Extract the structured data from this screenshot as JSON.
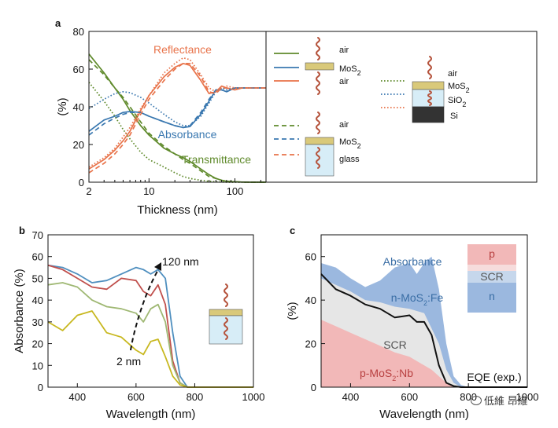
{
  "chart_data": [
    {
      "type": "line",
      "panel_label": "a",
      "xlabel": "Thickness (nm)",
      "ylabel": "(%)",
      "xscale": "log",
      "xlim": [
        2,
        230
      ],
      "ylim": [
        0,
        80
      ],
      "xticks": [
        2,
        10,
        100
      ],
      "xtick_labels": [
        "2",
        "10",
        "100"
      ],
      "yticks": [
        0,
        20,
        40,
        60,
        80
      ],
      "ytick_labels": [
        "0",
        "20",
        "40",
        "60",
        "80"
      ],
      "annotations": [
        {
          "text": "Reflectance",
          "color": "#e8734a"
        },
        {
          "text": "Absorbance",
          "color": "#3a78b0"
        },
        {
          "text": "Transmittance",
          "color": "#5f8a2b"
        }
      ],
      "x": [
        2,
        3,
        4,
        5,
        6,
        8,
        10,
        15,
        20,
        25,
        30,
        40,
        50,
        60,
        70,
        80,
        100,
        120,
        150,
        230
      ],
      "series": [
        {
          "name": "T air/MoS2/air",
          "color": "#5f8a2b",
          "style": "solid",
          "values": [
            68,
            58,
            50,
            44,
            38,
            30,
            25,
            18,
            15,
            13,
            11,
            7,
            4,
            2,
            1,
            0.5,
            0.2,
            0.1,
            0,
            0
          ]
        },
        {
          "name": "A air/MoS2/air",
          "color": "#3a78b0",
          "style": "solid",
          "values": [
            27,
            33,
            35,
            37,
            37.5,
            37,
            35,
            32,
            30,
            29,
            29.5,
            36,
            43,
            49,
            49,
            48,
            50,
            50,
            50,
            50
          ]
        },
        {
          "name": "R air/MoS2/air",
          "color": "#e8734a",
          "style": "solid",
          "values": [
            7,
            12,
            17,
            22,
            27,
            38,
            46,
            56,
            61,
            63,
            62,
            54,
            47,
            48,
            51,
            50,
            49,
            50,
            50,
            50
          ]
        },
        {
          "name": "T glass",
          "color": "#5f8a2b",
          "style": "dashed",
          "values": [
            65,
            57,
            50,
            45,
            40,
            32,
            26,
            19,
            15,
            12,
            10,
            6,
            3,
            2,
            1,
            0.5,
            0.2,
            0.1,
            0,
            0
          ]
        },
        {
          "name": "A glass",
          "color": "#3a78b0",
          "style": "dashed",
          "values": [
            25,
            31,
            34,
            36,
            37,
            37,
            35,
            32,
            30,
            29,
            30,
            37,
            44,
            49,
            49,
            48,
            50,
            50,
            50,
            50
          ]
        },
        {
          "name": "R glass",
          "color": "#e8734a",
          "style": "dashed",
          "values": [
            5,
            10,
            15,
            20,
            25,
            36,
            44,
            54,
            60,
            63,
            63,
            56,
            48,
            47,
            50,
            50,
            49,
            50,
            50,
            50
          ]
        },
        {
          "name": "T SiO2/Si",
          "color": "#5f8a2b",
          "style": "dotted",
          "values": [
            53,
            43,
            35,
            28,
            23,
            16,
            12,
            8,
            5,
            3,
            2,
            1,
            0.5,
            0.2,
            0.1,
            0,
            0,
            0,
            0,
            0
          ]
        },
        {
          "name": "A SiO2/Si",
          "color": "#3a78b0",
          "style": "dotted",
          "values": [
            39,
            44,
            47,
            48,
            47.5,
            45,
            42,
            36,
            32,
            30,
            30,
            35,
            42,
            48,
            50,
            49,
            50,
            50,
            50,
            50
          ]
        },
        {
          "name": "R SiO2/Si",
          "color": "#e8734a",
          "style": "dotted",
          "values": [
            8,
            13,
            18,
            24,
            29,
            39,
            46,
            58,
            63,
            66,
            65,
            57,
            50,
            48,
            50,
            51,
            50,
            50,
            50,
            50
          ]
        }
      ],
      "legend": {
        "groups": [
          {
            "styles": [
              "solid"
            ],
            "layers": [
              "air",
              "MoS2",
              "air"
            ]
          },
          {
            "styles": [
              "dashed"
            ],
            "layers": [
              "air",
              "MoS2",
              "glass"
            ]
          },
          {
            "styles": [
              "dotted"
            ],
            "layers": [
              "air",
              "MoS2",
              "SiO2",
              "Si"
            ]
          }
        ],
        "layer_labels": {
          "air": "air",
          "MoS": "MoS",
          "sub2": "2",
          "glass": "glass",
          "SiO": "SiO",
          "Si": "Si"
        }
      }
    },
    {
      "type": "line",
      "panel_label": "b",
      "xlabel": "Wavelength (nm)",
      "ylabel": "Absorbance (%)",
      "xlim": [
        300,
        1000
      ],
      "ylim": [
        0,
        70
      ],
      "xticks": [
        400,
        600,
        800,
        1000
      ],
      "xtick_labels": [
        "400",
        "600",
        "800",
        "1000"
      ],
      "yticks": [
        0,
        10,
        20,
        30,
        40,
        50,
        60,
        70
      ],
      "ytick_labels": [
        "0",
        "10",
        "20",
        "30",
        "40",
        "50",
        "60",
        "70"
      ],
      "annotations": [
        {
          "text": "120 nm"
        },
        {
          "text": "2 nm"
        }
      ],
      "x": [
        300,
        350,
        400,
        450,
        500,
        550,
        600,
        625,
        650,
        675,
        700,
        725,
        750,
        775,
        800,
        1000
      ],
      "series": [
        {
          "name": "120 nm",
          "color": "#4f8fbf",
          "values": [
            56,
            55,
            52,
            48,
            49,
            52,
            55,
            54,
            52,
            54,
            50,
            25,
            5,
            0,
            0,
            0
          ]
        },
        {
          "name": "thick",
          "color": "#c0504d",
          "values": [
            56,
            54,
            50,
            46,
            45,
            50,
            49,
            44,
            42,
            47,
            38,
            12,
            2,
            0,
            0,
            0
          ]
        },
        {
          "name": "mid",
          "color": "#9fb873",
          "values": [
            47,
            48,
            46,
            40,
            37,
            36,
            34,
            30,
            36,
            38,
            30,
            10,
            2,
            0,
            0,
            0
          ]
        },
        {
          "name": "2 nm",
          "color": "#c8b820",
          "values": [
            30,
            26,
            33,
            35,
            25,
            23,
            17,
            15,
            21,
            22,
            14,
            5,
            1,
            0,
            0,
            0
          ]
        }
      ]
    },
    {
      "type": "area",
      "panel_label": "c",
      "xlabel": "Wavelength (nm)",
      "ylabel": "(%)",
      "xlim": [
        300,
        1000
      ],
      "ylim": [
        0,
        70
      ],
      "xticks": [
        400,
        600,
        800,
        1000
      ],
      "xtick_labels": [
        "400",
        "600",
        "800",
        "1000"
      ],
      "yticks": [
        0,
        20,
        40,
        60
      ],
      "ytick_labels": [
        "0",
        "20",
        "40",
        "60"
      ],
      "annotations": [
        {
          "text": "Absorbance",
          "color": "#3a6ea5"
        },
        {
          "text": "n-MoS",
          "sub": "2",
          "suffix": ":Fe",
          "color": "#3a6ea5"
        },
        {
          "text": "SCR",
          "color": "#555555"
        },
        {
          "text": "p-MoS",
          "sub": "2",
          "suffix": ":Nb",
          "color": "#b84040"
        },
        {
          "text": "EQE (exp.)",
          "color": "#111111"
        }
      ],
      "inset_labels": [
        "p",
        "SCR",
        "n"
      ],
      "x": [
        300,
        350,
        400,
        450,
        500,
        550,
        600,
        625,
        650,
        675,
        700,
        725,
        750,
        775,
        800,
        1000
      ],
      "series": [
        {
          "name": "Absorbance",
          "color": "#9bb8df",
          "values": [
            57,
            55,
            50,
            46,
            49,
            55,
            57,
            52,
            57,
            60,
            45,
            20,
            5,
            1,
            0,
            0
          ]
        },
        {
          "name": "SCR",
          "color": "#e6e6e6",
          "values": [
            50,
            47,
            44,
            40,
            39,
            37,
            36,
            35,
            34,
            27,
            20,
            8,
            2,
            0,
            0,
            0
          ]
        },
        {
          "name": "p-MoS2:Nb",
          "color": "#f2b8b8",
          "values": [
            31,
            28,
            25,
            22,
            19,
            16,
            14,
            12,
            10,
            8,
            5,
            2,
            0.5,
            0,
            0,
            0
          ]
        },
        {
          "name": "EQE (exp.)",
          "color": "#111111",
          "values": [
            52,
            45,
            42,
            38,
            36,
            32,
            33,
            30,
            30,
            24,
            10,
            2,
            0.5,
            0,
            0,
            0
          ]
        }
      ]
    }
  ],
  "watermark": {
    "text": "低維 昂維"
  }
}
